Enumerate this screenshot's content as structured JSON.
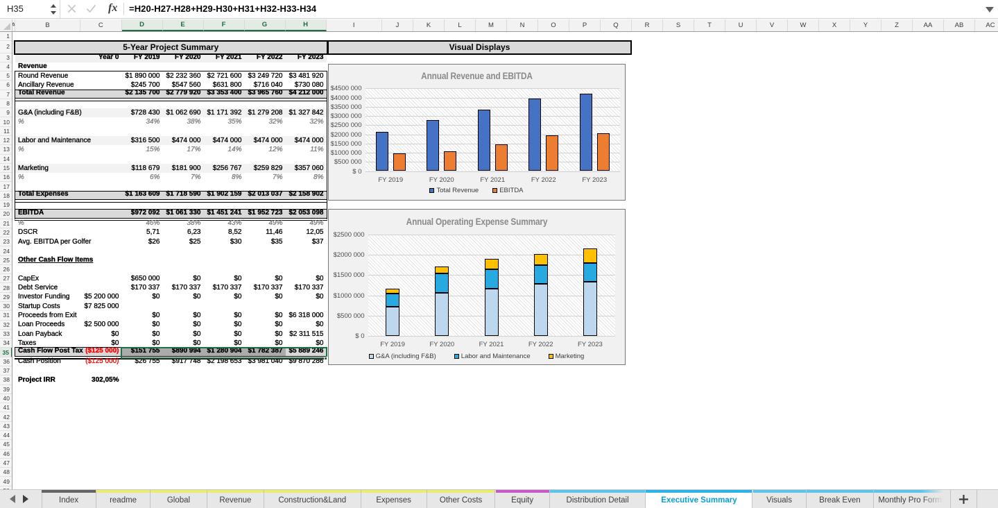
{
  "formula_bar": {
    "name_box": "H35",
    "formula": "=H20-H27-H28+H29-H30+H31+H32-H33-H34",
    "fx_label": "fx"
  },
  "grid": {
    "column_headers": [
      "A",
      "B",
      "C",
      "D",
      "E",
      "F",
      "G",
      "H",
      "I",
      "J",
      "K",
      "L",
      "M",
      "N",
      "O",
      "P",
      "Q",
      "R",
      "S",
      "T",
      "U",
      "V",
      "W",
      "X",
      "Y",
      "Z",
      "AA",
      "AB",
      "AC"
    ],
    "selected_columns": [
      "D",
      "E",
      "F",
      "G",
      "H"
    ],
    "visible_rows": 50,
    "selected_row": 35
  },
  "table": {
    "title": "5-Year Project Summary",
    "year0_header": "Year 0",
    "year_headers": [
      "FY 2019",
      "FY 2020",
      "FY 2021",
      "FY 2022",
      "FY 2023"
    ],
    "rows": [
      {
        "r": 4,
        "label": "Revenue",
        "style": "bold"
      },
      {
        "r": 5,
        "label": "Round Revenue",
        "v": [
          "$1 890 000",
          "$2 232 360",
          "$2 721 600",
          "$3 249 720",
          "$3 481 920"
        ]
      },
      {
        "r": 6,
        "label": "Ancillary Revenue",
        "v": [
          "$245 700",
          "$547 560",
          "$631 800",
          "$716 040",
          "$730 080"
        ]
      },
      {
        "r": 7,
        "label": "Total Revenue",
        "style": "total",
        "v": [
          "$2 135 700",
          "$2 779 920",
          "$3 353 400",
          "$3 965 760",
          "$4 212 000"
        ]
      },
      {
        "r": 9,
        "label": "G&A (including F&B)",
        "style": "band",
        "v": [
          "$728 430",
          "$1 062 690",
          "$1 171 392",
          "$1 279 208",
          "$1 327 842"
        ]
      },
      {
        "r": 10,
        "label": "%",
        "style": "pct",
        "v": [
          "34%",
          "38%",
          "35%",
          "32%",
          "32%"
        ]
      },
      {
        "r": 12,
        "label": "Labor and Maintenance",
        "style": "band",
        "v": [
          "$316 500",
          "$474 000",
          "$474 000",
          "$474 000",
          "$474 000"
        ]
      },
      {
        "r": 13,
        "label": "%",
        "style": "pct",
        "v": [
          "15%",
          "17%",
          "14%",
          "12%",
          "11%"
        ]
      },
      {
        "r": 15,
        "label": "Marketing",
        "style": "band",
        "v": [
          "$118 679",
          "$181 900",
          "$256 767",
          "$259 829",
          "$357 060"
        ]
      },
      {
        "r": 16,
        "label": "%",
        "style": "pct",
        "v": [
          "6%",
          "7%",
          "8%",
          "7%",
          "8%"
        ]
      },
      {
        "r": 18,
        "label": "Total Expenses",
        "style": "total2",
        "v": [
          "$1 163 609",
          "$1 718 590",
          "$1 902 159",
          "$2 013 037",
          "$2 158 902"
        ]
      },
      {
        "r": 20,
        "label": "EBITDA",
        "style": "total2box",
        "v": [
          "$972 092",
          "$1 061 330",
          "$1 451 241",
          "$1 952 723",
          "$2 053 098"
        ]
      },
      {
        "r": 21,
        "label": "%",
        "style": "pct",
        "v": [
          "46%",
          "38%",
          "43%",
          "49%",
          "49%"
        ]
      },
      {
        "r": 22,
        "label": "DSCR",
        "v": [
          "5,71",
          "6,23",
          "8,52",
          "11,46",
          "12,05"
        ]
      },
      {
        "r": 23,
        "label": "Avg. EBITDA per Golfer",
        "v": [
          "$26",
          "$25",
          "$30",
          "$35",
          "$37"
        ]
      },
      {
        "r": 25,
        "label": "Other Cash Flow Items",
        "style": "boldu"
      },
      {
        "r": 27,
        "label": "CapEx",
        "v": [
          "$650 000",
          "$0",
          "$0",
          "$0",
          "$0"
        ]
      },
      {
        "r": 28,
        "label": "Debt Service",
        "v": [
          "$170 337",
          "$170 337",
          "$170 337",
          "$170 337",
          "$170 337"
        ]
      },
      {
        "r": 29,
        "label": "Investor Funding",
        "c": "$5 200 000",
        "v": [
          "$0",
          "$0",
          "$0",
          "$0",
          "$0"
        ]
      },
      {
        "r": 30,
        "label": "Startup Costs",
        "c": "$7 825 000"
      },
      {
        "r": 31,
        "label": "Proceeds from Exit",
        "v": [
          "$0",
          "$0",
          "$0",
          "$0",
          "$6 318 000"
        ]
      },
      {
        "r": 32,
        "label": "Loan Proceeds",
        "c": "$2 500 000",
        "v": [
          "$0",
          "$0",
          "$0",
          "$0",
          "$0"
        ]
      },
      {
        "r": 33,
        "label": "Loan Payback",
        "c": "$0",
        "v": [
          "$0",
          "$0",
          "$0",
          "$0",
          "$2 311 515"
        ]
      },
      {
        "r": 34,
        "label": "Taxes",
        "c": "$0",
        "v": [
          "$0",
          "$0",
          "$0",
          "$0",
          "$0"
        ]
      },
      {
        "r": 35,
        "label": "Cash Flow Post Tax",
        "style": "totalsel",
        "c": "($125 000)",
        "cRed": true,
        "v": [
          "$151 755",
          "$890 994",
          "$1 280 904",
          "$1 782 387",
          "$5 889 246"
        ]
      },
      {
        "r": 36,
        "label": "Cash Position",
        "c": "($125 000)",
        "cRed": true,
        "v": [
          "$26 755",
          "$917 748",
          "$2 198 653",
          "$3 981 040",
          "$9 870 286"
        ]
      },
      {
        "r": 38,
        "label": "Project IRR",
        "style": "bold",
        "c": "302,05%",
        "cBold": true
      }
    ]
  },
  "visuals_title": "Visual Displays",
  "chart_data": [
    {
      "type": "bar",
      "title": "Annual Revenue and EBITDA",
      "categories": [
        "FY 2019",
        "FY 2020",
        "FY 2021",
        "FY 2022",
        "FY 2023"
      ],
      "series": [
        {
          "name": "Total Revenue",
          "color": "#4472c4",
          "values": [
            2135700,
            2779920,
            3353400,
            3965760,
            4212000
          ]
        },
        {
          "name": "EBITDA",
          "color": "#ed7d31",
          "values": [
            972092,
            1061330,
            1451241,
            1952723,
            2053098
          ]
        }
      ],
      "ylim": [
        0,
        4500000
      ],
      "ytick_step": 500000,
      "ytick_labels": [
        "$ 0",
        "$500 000",
        "$1000 000",
        "$1500 000",
        "$2000 000",
        "$2500 000",
        "$3000 000",
        "$3500 000",
        "$4000 000",
        "$4500 000"
      ],
      "legend_position": "bottom",
      "grid": true
    },
    {
      "type": "stacked-bar",
      "title": "Annual Operating Expense Summary",
      "categories": [
        "FY 2019",
        "FY 2020",
        "FY 2021",
        "FY 2022",
        "FY 2023"
      ],
      "series": [
        {
          "name": "G&A (including F&B)",
          "color": "#bdd7ee",
          "values": [
            728430,
            1062690,
            1171392,
            1279208,
            1327842
          ]
        },
        {
          "name": "Labor and Maintenance",
          "color": "#27aae1",
          "values": [
            316500,
            474000,
            474000,
            474000,
            474000
          ]
        },
        {
          "name": "Marketing",
          "color": "#ffc000",
          "values": [
            118679,
            181900,
            256767,
            259829,
            357060
          ]
        }
      ],
      "ylim": [
        0,
        2500000
      ],
      "ytick_step": 500000,
      "ytick_labels": [
        "$ 0",
        "$500 000",
        "$1000 000",
        "$1500 000",
        "$2000 000",
        "$2500 000"
      ],
      "legend_position": "bottom",
      "grid": true
    }
  ],
  "tabs": {
    "items": [
      {
        "label": "Index",
        "color": "dark"
      },
      {
        "label": "readme",
        "color": "yellow"
      },
      {
        "label": "Global",
        "color": "yellow"
      },
      {
        "label": "Revenue",
        "color": "yellow"
      },
      {
        "label": "Construction&Land",
        "color": "yellow"
      },
      {
        "label": "Expenses",
        "color": "yellow"
      },
      {
        "label": "Other Costs",
        "color": "yellow"
      },
      {
        "label": "Equity",
        "color": "purple"
      },
      {
        "label": "Distribution Detail",
        "color": "blue"
      },
      {
        "label": "Executive Summary",
        "color": "active_blue",
        "active": true
      },
      {
        "label": "Visuals",
        "color": "blue"
      },
      {
        "label": "Break Even",
        "color": "blue"
      },
      {
        "label": "Monthly Pro Forma",
        "color": "blue",
        "faded": true
      }
    ],
    "add_label": "+",
    "colors": {
      "dark": "#646464",
      "yellow": "#ebeb70",
      "purple": "#c45ac8",
      "blue": "#5ac4e8",
      "active_blue": "#2cb3e8",
      "active_text": "#0b9fd8"
    }
  }
}
